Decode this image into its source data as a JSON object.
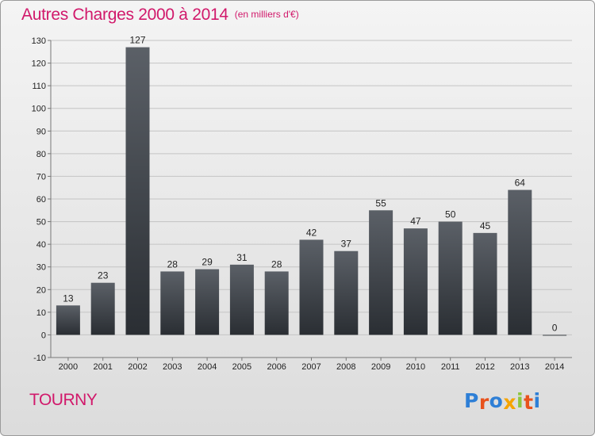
{
  "header": {
    "title": "Autres Charges 2000 à 2014",
    "subtitle": "(en milliers d'€)"
  },
  "footer": {
    "place": "TOURNY",
    "brand": "Proxiti",
    "brand_colors": [
      "#2e7fd6",
      "#e8521c",
      "#2e7fd6",
      "#f5a400",
      "#8cc63f",
      "#e8521c",
      "#2e7fd6"
    ]
  },
  "colors": {
    "accent": "#d1196b",
    "bar_top": "#5b6067",
    "bar_bottom": "#2a2e33",
    "grid": "#c4c4c4",
    "axis_text": "#222222"
  },
  "chart_data": {
    "type": "bar",
    "title": "Autres Charges 2000 à 2014",
    "subtitle": "(en milliers d'€)",
    "categories": [
      "2000",
      "2001",
      "2002",
      "2003",
      "2004",
      "2005",
      "2006",
      "2007",
      "2008",
      "2009",
      "2010",
      "2011",
      "2012",
      "2013",
      "2014"
    ],
    "values": [
      13,
      23,
      127,
      28,
      29,
      31,
      28,
      42,
      37,
      55,
      47,
      50,
      45,
      64,
      0
    ],
    "data_labels": [
      "13",
      "23",
      "127",
      "28",
      "29",
      "31",
      "28",
      "42",
      "37",
      "55",
      "47",
      "50",
      "45",
      "64",
      "0"
    ],
    "yticks": [
      -10,
      0,
      10,
      20,
      30,
      40,
      50,
      60,
      70,
      80,
      90,
      100,
      110,
      120,
      130
    ],
    "ylim": [
      -10,
      130
    ],
    "grid": true,
    "legend": "none"
  }
}
